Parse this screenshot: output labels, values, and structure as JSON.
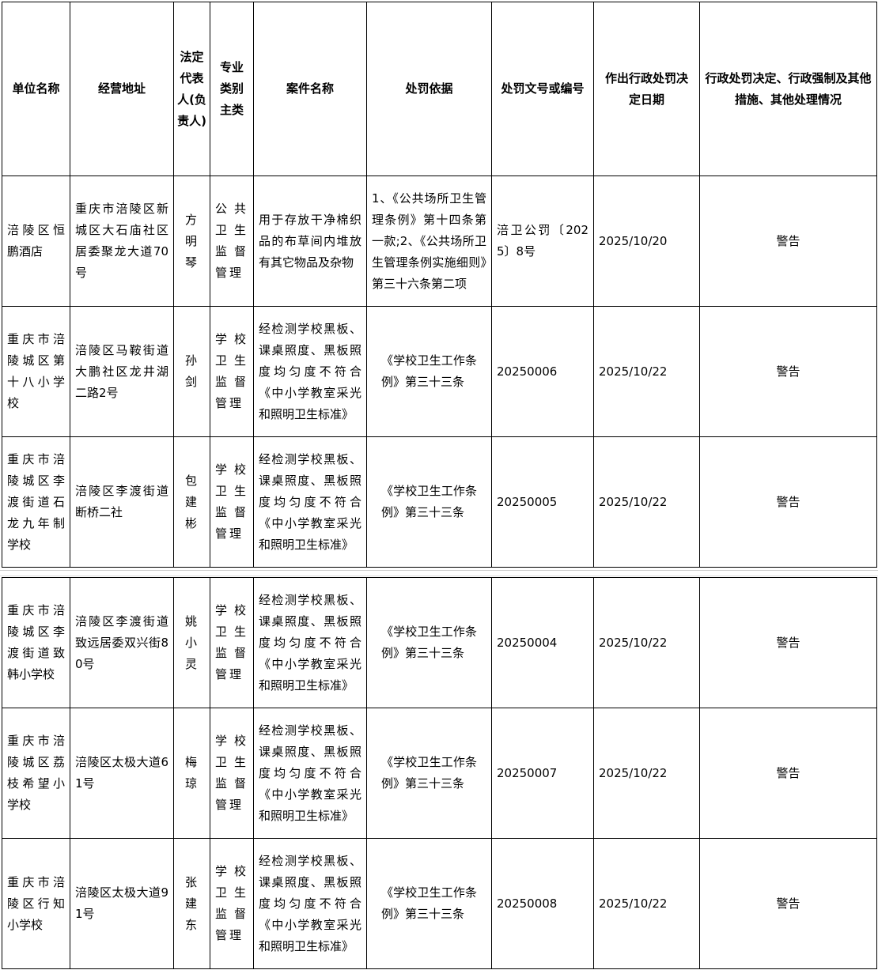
{
  "headers": [
    "单位名称",
    "经营地址",
    "法定代表人(负责人)",
    "专业类别主类",
    "案件名称",
    "处罚依据",
    "处罚文号或编号",
    "作出行政处罚决定日期",
    "行政处罚决定、行政强制及其他措施、其他处理情况"
  ],
  "rows": [
    [
      "涪陵区恒鹏酒店",
      "重庆市涪陵区新城区大石庙社区居委聚龙大道70号",
      "方明琴",
      "公共卫生监督管理",
      "用于存放干净棉织品的布草间内堆放有其它物品及杂物",
      "1、《公共场所卫生管理条例》第十四条第一款;2、《公共场所卫生管理条例实施细则》第三十六条第二项",
      "涪卫公罚〔2025〕8号",
      "2025/10/20",
      "警告"
    ],
    [
      "重庆市涪陵城区第十八小学校",
      "涪陵区马鞍街道大鹏社区龙井湖二路2号",
      "孙剑",
      "学校卫生监督管理",
      "经检测学校黑板、课桌照度、黑板照度均匀度不符合《中小学教室采光和照明卫生标准》",
      "《学校卫生工作条例》第三十三条",
      "20250006",
      "2025/10/22",
      "警告"
    ],
    [
      "重庆市涪陵城区李渡街道石龙九年制学校",
      "涪陵区李渡街道断桥二社",
      "包建彬",
      "学校卫生监督管理",
      "经检测学校黑板、课桌照度、黑板照度均匀度不符合《中小学教室采光和照明卫生标准》",
      "《学校卫生工作条例》第三十三条",
      "20250005",
      "2025/10/22",
      "警告"
    ],
    [
      "重庆市涪陵城区李渡街道致韩小学校",
      "涪陵区李渡街道致远居委双兴街80号",
      "姚小灵",
      "学校卫生监督管理",
      "经检测学校黑板、课桌照度、黑板照度均匀度不符合《中小学教室采光和照明卫生标准》",
      "《学校卫生工作条例》第三十三条",
      "20250004",
      "2025/10/22",
      "警告"
    ],
    [
      "重庆市涪陵城区荔枝希望小学校",
      "涪陵区太极大道61号",
      "梅琼",
      "学校卫生监督管理",
      "经检测学校黑板、课桌照度、黑板照度均匀度不符合《中小学教室采光和照明卫生标准》",
      "《学校卫生工作条例》第三十三条",
      "20250007",
      "2025/10/22",
      "警告"
    ],
    [
      "重庆市涪陵区行知小学校",
      "涪陵区太极大道91号",
      "张建东",
      "学校卫生监督管理",
      "经检测学校黑板、课桌照度、黑板照度均匀度不符合《中小学教室采光和照明卫生标准》",
      "《学校卫生工作条例》第三十三条",
      "20250008",
      "2025/10/22",
      "警告"
    ]
  ]
}
